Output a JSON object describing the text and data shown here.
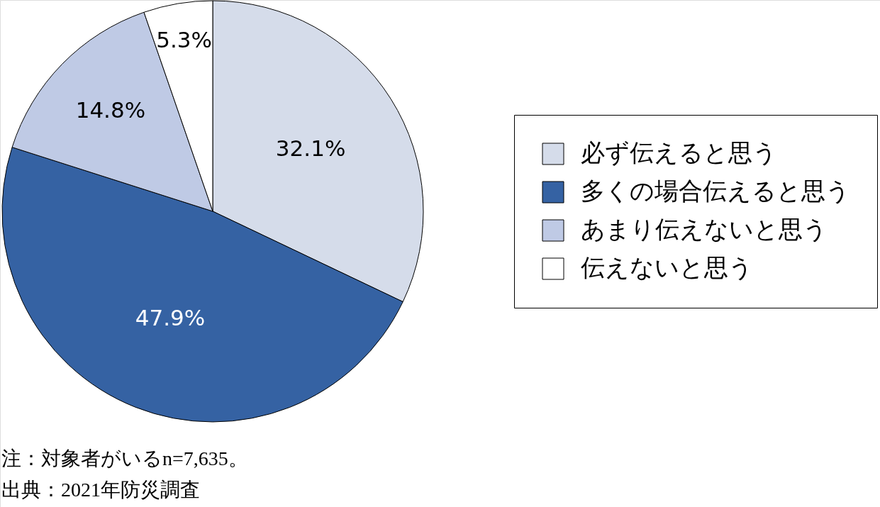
{
  "chart_data": {
    "type": "pie",
    "categories": [
      "必ず伝えると思う",
      "多くの場合伝えると思う",
      "あまり伝えないと思う",
      "伝えないと思う"
    ],
    "values": [
      32.1,
      47.9,
      14.8,
      5.3
    ],
    "colors": [
      "#d5dcea",
      "#3562a3",
      "#bfcae5",
      "#ffffff"
    ],
    "value_labels": [
      "32.1%",
      "47.9%",
      "14.8%",
      "5.3%"
    ],
    "legend": "right",
    "annotations": [
      "注：対象者がいるn=7,635。",
      "出典：2021年防災調査"
    ]
  }
}
